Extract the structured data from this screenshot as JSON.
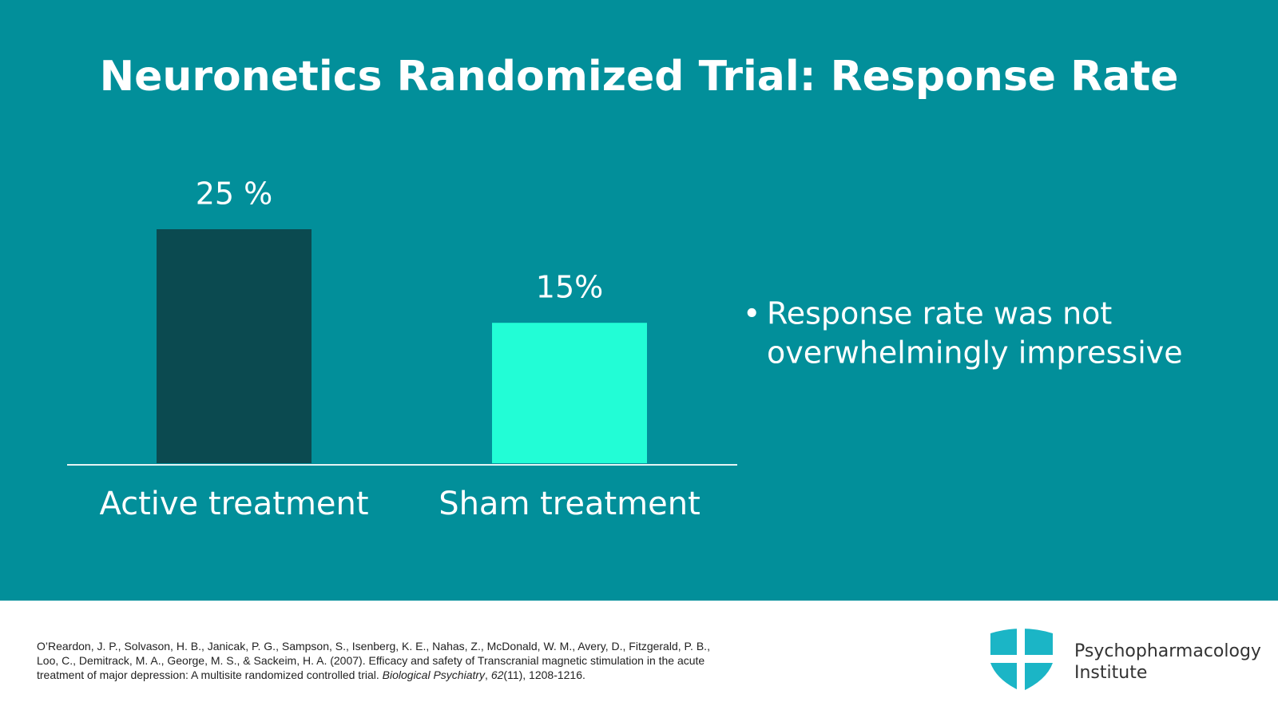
{
  "chart_data": {
    "type": "bar",
    "title": "Neuronetics Randomized Trial: Response Rate",
    "categories": [
      "Active treatment",
      "Sham treatment"
    ],
    "values": [
      25,
      15
    ],
    "value_labels": [
      "25 %",
      "15%"
    ],
    "colors": [
      "#0b4a50",
      "#22fdd6"
    ]
  },
  "bullet": {
    "lines": [
      "Response rate was not",
      "overwhelmingly impressive"
    ]
  },
  "citation": [
    [
      "O’Reardon, J. P., Solvason, H. B., Janicak, P. G., Sampson, S., Isenberg, K. E., Nahas, Z., McDonald, W. M., Avery, D., Fitzgerald, P. B.,"
    ],
    [
      "Loo, C., Demitrack, M. A., George, M. S., & Sackeim, H. A. (2007). Efficacy and safety of Transcranial magnetic stimulation in the acute"
    ],
    [
      "treatment of major depression: A multisite randomized controlled trial. ",
      "Biological Psychiatry",
      ", ",
      "62",
      "(11), 1208-1216."
    ]
  ],
  "logo": {
    "lines": [
      "Psychopharmacology",
      "Institute"
    ]
  }
}
